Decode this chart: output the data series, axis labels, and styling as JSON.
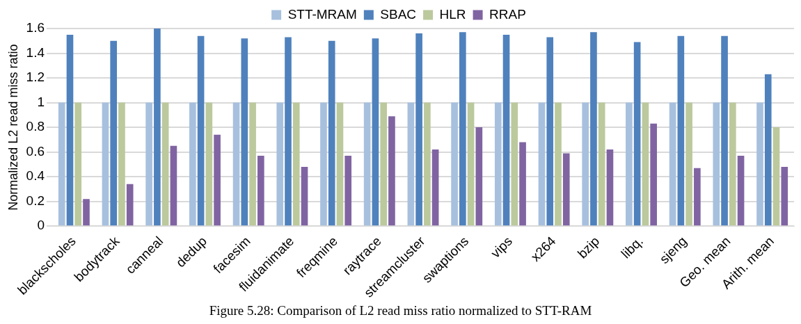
{
  "chart_data": {
    "type": "bar",
    "categories": [
      "blackscholes",
      "bodytrack",
      "canneal",
      "dedup",
      "facesim",
      "fluidanimate",
      "freqmine",
      "raytrace",
      "streamcluster",
      "swaptions",
      "vips",
      "x264",
      "bzip",
      "libq.",
      "sjeng",
      "Geo. mean",
      "Arith. mean"
    ],
    "series": [
      {
        "name": "STT-MRAM",
        "color": "#a7c0de",
        "values": [
          1,
          1,
          1,
          1,
          1,
          1,
          1,
          1,
          1,
          1,
          1,
          1,
          1,
          1,
          1,
          1,
          1
        ]
      },
      {
        "name": "SBAC",
        "color": "#4f81bd",
        "values": [
          1.55,
          1.5,
          1.6,
          1.54,
          1.52,
          1.53,
          1.5,
          1.52,
          1.56,
          1.57,
          1.55,
          1.53,
          1.57,
          1.49,
          1.54,
          1.54,
          1.23
        ]
      },
      {
        "name": "HLR",
        "color": "#bbc99d",
        "values": [
          1,
          1,
          1,
          1,
          1,
          1,
          1,
          1,
          1,
          1,
          1,
          1,
          1,
          1,
          1,
          1,
          0.8
        ]
      },
      {
        "name": "RRAP",
        "color": "#8064a2",
        "values": [
          0.22,
          0.34,
          0.65,
          0.74,
          0.57,
          0.48,
          0.57,
          0.89,
          0.62,
          0.8,
          0.68,
          0.59,
          0.62,
          0.83,
          0.47,
          0.57,
          0.48
        ]
      }
    ],
    "ylabel": "Normalized L2 read miss ratio",
    "ylim": [
      0,
      1.6
    ],
    "yticks": [
      0,
      0.2,
      0.4,
      0.6,
      0.8,
      1,
      1.2,
      1.4,
      1.6
    ],
    "grid": "y",
    "legend": "top",
    "annotations": [
      "Figure 5.28: Comparison of L2 read miss ratio normalized to STT-RAM"
    ]
  }
}
